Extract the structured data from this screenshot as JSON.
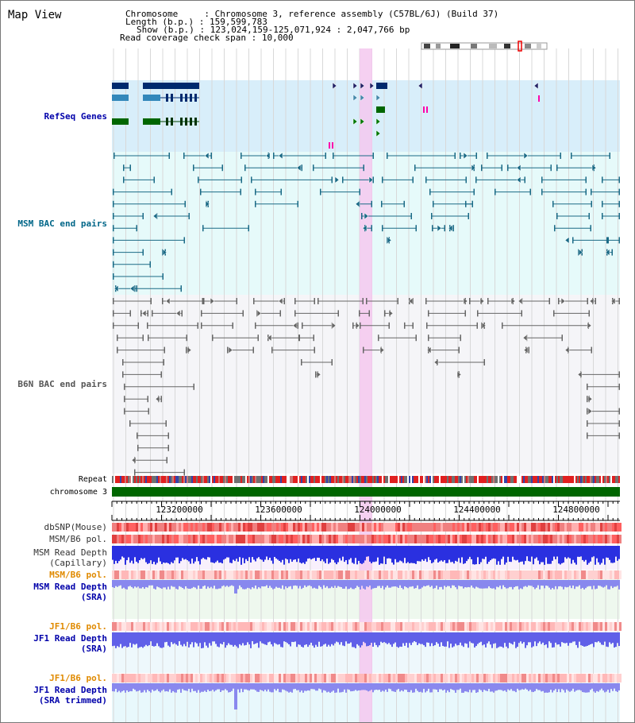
{
  "header": {
    "title": "Map View",
    "chromosome_label": "Chromosome",
    "chromosome_value": "Chromosome 3, reference assembly (C57BL/6J) (Build 37)",
    "length_label": "Length (b.p.)",
    "length_value": "159,599,783",
    "show_label": "Show (b.p.)",
    "show_value": "123,024,159-125,071,924 : 2,047,766 bp",
    "coverage_label": "Read coverage check span",
    "coverage_value": "10,000"
  },
  "tracks": {
    "refseq": "RefSeq Genes",
    "msm_bac": "MSM BAC end pairs",
    "b6n_bac": "B6N BAC end pairs",
    "repeat": "Repeat",
    "chromosome": "chromosome 3",
    "dbsnp": "dbSNP(Mouse)",
    "msm_b6_pol_1": "MSM/B6 pol.",
    "msm_read_depth_cap_1": "MSM Read Depth",
    "msm_read_depth_cap_2": "(Capillary)",
    "msm_b6_pol_2": "MSM/B6 pol.",
    "msm_read_depth_sra_1": "MSM Read Depth",
    "msm_read_depth_sra_2": "(SRA)",
    "jf1_b6_pol_1": "JF1/B6 pol.",
    "jf1_read_depth_sra_1": "JF1 Read Depth",
    "jf1_read_depth_sra_2": "(SRA)",
    "jf1_b6_pol_2": "JF1/B6 pol.",
    "jf1_read_depth_trim_1": "JF1 Read Depth",
    "jf1_read_depth_trim_2": "(SRA trimmed)"
  },
  "ruler": {
    "ticks": [
      "123200000",
      "123600000",
      "124000000",
      "124400000",
      "124800000"
    ]
  },
  "colors": {
    "refseq_label": "#0000aa",
    "msm_label": "#006688",
    "b6n_label": "#555555",
    "orange_label": "#e08a00",
    "blue_label": "#0000aa",
    "highlight": "#f5c8ee",
    "chromosome_bar": "#006600"
  }
}
